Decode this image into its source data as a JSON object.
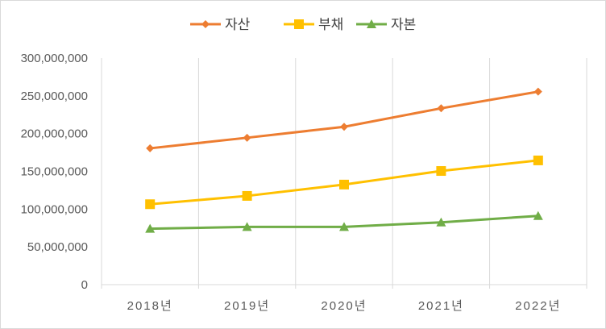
{
  "chart_data": {
    "type": "line",
    "categories": [
      "2018년",
      "2019년",
      "2020년",
      "2021년",
      "2022년"
    ],
    "series": [
      {
        "name": "자산",
        "values": [
          180500000,
          194500000,
          209000000,
          233500000,
          255500000
        ],
        "color": "#ED7D31",
        "marker": "diamond"
      },
      {
        "name": "부채",
        "values": [
          106500000,
          117500000,
          132500000,
          150500000,
          164500000
        ],
        "color": "#FFC000",
        "marker": "square"
      },
      {
        "name": "자본",
        "values": [
          74000000,
          76500000,
          76500000,
          82500000,
          91000000
        ],
        "color": "#70AD47",
        "marker": "triangle"
      }
    ],
    "ylim": [
      0,
      300000000
    ],
    "yticks": [
      "0",
      "50,000,000",
      "100,000,000",
      "150,000,000",
      "200,000,000",
      "250,000,000",
      "300,000,000"
    ],
    "grid": "vertical",
    "legend_position": "top"
  }
}
